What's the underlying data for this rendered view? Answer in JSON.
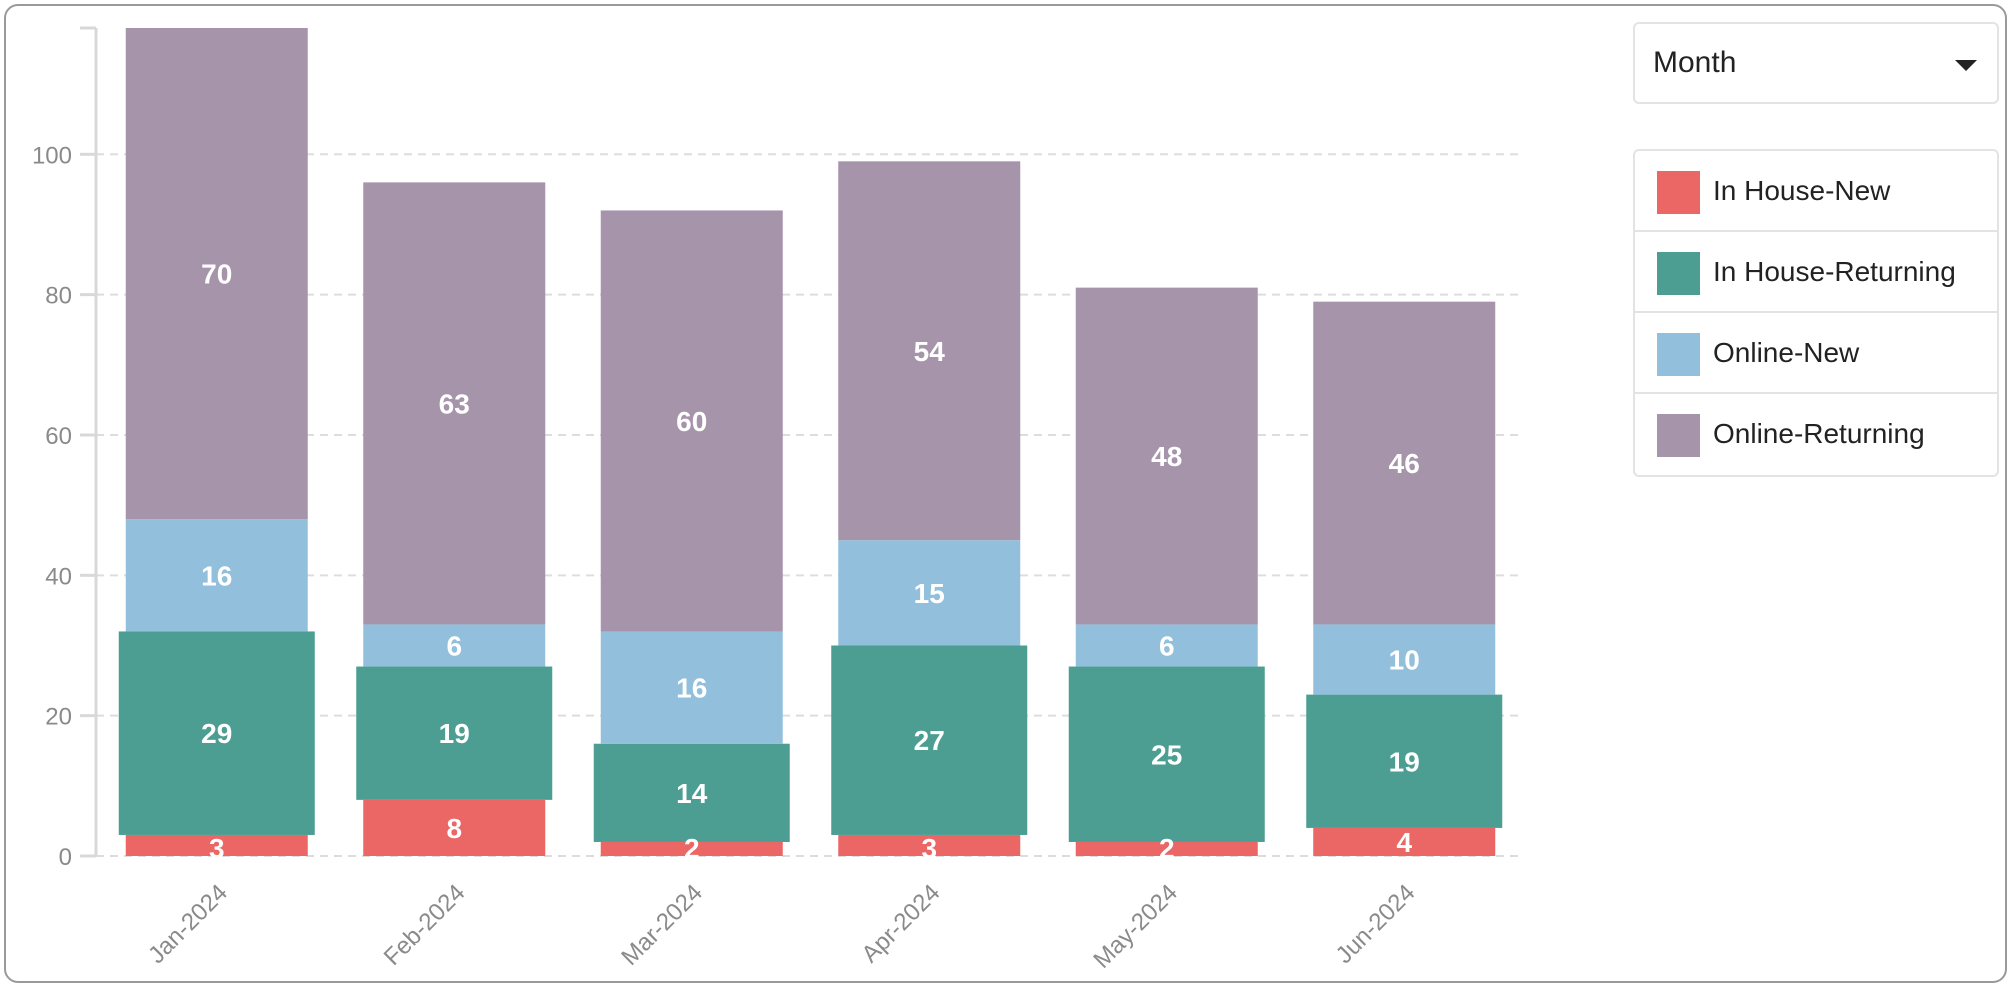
{
  "controls": {
    "period_select": {
      "value": "Month"
    }
  },
  "legend": {
    "items": [
      {
        "label": "In House-New",
        "color": "#ea6765"
      },
      {
        "label": "In House-Returning",
        "color": "#4b9e91"
      },
      {
        "label": "Online-New",
        "color": "#92c0dc"
      },
      {
        "label": "Online-Returning",
        "color": "#a694aa"
      }
    ]
  },
  "chart_data": {
    "type": "bar",
    "stacked": true,
    "title": "",
    "xlabel": "",
    "ylabel": "",
    "categories": [
      "Jan-2024",
      "Feb-2024",
      "Mar-2024",
      "Apr-2024",
      "May-2024",
      "Jun-2024"
    ],
    "series": [
      {
        "name": "In House-New",
        "color": "#ea6765",
        "values": [
          3,
          8,
          2,
          3,
          2,
          4
        ]
      },
      {
        "name": "In House-Returning",
        "color": "#4b9e91",
        "values": [
          29,
          19,
          14,
          27,
          25,
          19
        ]
      },
      {
        "name": "Online-New",
        "color": "#92c0dc",
        "values": [
          16,
          6,
          16,
          15,
          6,
          10
        ]
      },
      {
        "name": "Online-Returning",
        "color": "#a694aa",
        "values": [
          70,
          63,
          60,
          54,
          48,
          46
        ]
      }
    ],
    "ylim": [
      0,
      118
    ],
    "yticks": [
      0,
      20,
      40,
      60,
      80,
      100
    ],
    "grid": true,
    "legend_position": "right"
  }
}
